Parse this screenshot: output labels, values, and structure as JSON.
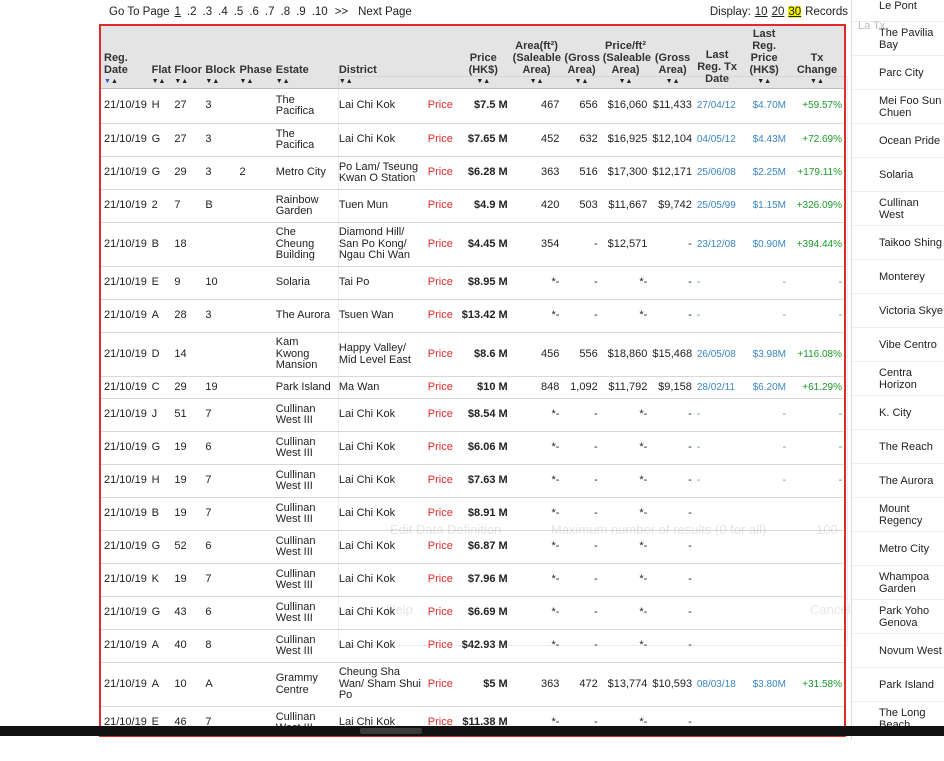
{
  "pager": {
    "go_to_label": "Go To Page",
    "pages": [
      "1",
      ".2",
      ".3",
      ".4",
      ".5",
      ".6",
      ".7",
      ".8",
      ".9",
      ".10"
    ],
    "more": ">>",
    "next": "Next Page",
    "display_label": "Display:",
    "display_options": [
      "10",
      "20",
      "30"
    ],
    "display_selected": "30",
    "records_label": "Records"
  },
  "table": {
    "headers": {
      "reg_date": "Reg. Date",
      "flat": "Flat",
      "floor": "Floor",
      "block": "Block",
      "phase": "Phase",
      "estate": "Estate",
      "district": "District",
      "price_col": "Price (HK$)",
      "area_group": "Area(ft²)",
      "area_saleable": "(Saleable Area)",
      "area_gross": "(Gross Area)",
      "price_ft_group": "Price/ft²",
      "pft_saleable": "(Saleable Area)",
      "pft_gross": "(Gross Area)",
      "last_tx_date": "Last Reg. Tx Date",
      "last_tx_price": "Last Reg. Price (HK$)",
      "change": "Tx Change"
    },
    "rows": [
      {
        "date": "21/10/19",
        "flat": "H",
        "floor": "27",
        "block": "3",
        "phase": "",
        "estate": "The Pacifica",
        "district": "Lai Chi Kok",
        "price_link": "Price",
        "price": "$7.5 M",
        "sa": "467",
        "ga": "656",
        "psa": "$16,060",
        "pga": "$11,433",
        "ltd": "27/04/12",
        "ltp": "$4.70M",
        "chg": "+59.57%"
      },
      {
        "date": "21/10/19",
        "flat": "G",
        "floor": "27",
        "block": "3",
        "phase": "",
        "estate": "The Pacifica",
        "district": "Lai Chi Kok",
        "price_link": "Price",
        "price": "$7.65 M",
        "sa": "452",
        "ga": "632",
        "psa": "$16,925",
        "pga": "$12,104",
        "ltd": "04/05/12",
        "ltp": "$4.43M",
        "chg": "+72.69%"
      },
      {
        "date": "21/10/19",
        "flat": "G",
        "floor": "29",
        "block": "3",
        "phase": "2",
        "estate": "Metro City",
        "district": "Po Lam/ Tseung Kwan O Station",
        "price_link": "Price",
        "price": "$6.28 M",
        "sa": "363",
        "ga": "516",
        "psa": "$17,300",
        "pga": "$12,171",
        "ltd": "25/06/08",
        "ltp": "$2.25M",
        "chg": "+179.11%"
      },
      {
        "date": "21/10/19",
        "flat": "2",
        "floor": "7",
        "block": "B",
        "phase": "",
        "estate": "Rainbow Garden",
        "district": "Tuen Mun",
        "price_link": "Price",
        "price": "$4.9 M",
        "sa": "420",
        "ga": "503",
        "psa": "$11,667",
        "pga": "$9,742",
        "ltd": "25/05/99",
        "ltp": "$1.15M",
        "chg": "+326.09%"
      },
      {
        "date": "21/10/19",
        "flat": "B",
        "floor": "18",
        "block": "",
        "phase": "",
        "estate": "Che Cheung Building",
        "district": "Diamond Hill/ San Po Kong/ Ngau Chi Wan",
        "price_link": "Price",
        "price": "$4.45 M",
        "sa": "354",
        "ga": "-",
        "psa": "$12,571",
        "pga": "-",
        "ltd": "23/12/08",
        "ltp": "$0.90M",
        "chg": "+394.44%"
      },
      {
        "date": "21/10/19",
        "flat": "E",
        "floor": "9",
        "block": "10",
        "phase": "",
        "estate": "Solaria",
        "district": "Tai Po",
        "price_link": "Price",
        "price": "$8.95 M",
        "sa": "*-",
        "ga": "-",
        "psa": "*-",
        "pga": "-",
        "ltd": "-",
        "ltp": "-",
        "chg": "-"
      },
      {
        "date": "21/10/19",
        "flat": "A",
        "floor": "28",
        "block": "3",
        "phase": "",
        "estate": "The Aurora",
        "district": "Tsuen Wan",
        "price_link": "Price",
        "price": "$13.42 M",
        "sa": "*-",
        "ga": "-",
        "psa": "*-",
        "pga": "-",
        "ltd": "-",
        "ltp": "-",
        "chg": "-"
      },
      {
        "date": "21/10/19",
        "flat": "D",
        "floor": "14",
        "block": "",
        "phase": "",
        "estate": "Kam Kwong Mansion",
        "district": "Happy Valley/ Mid Level East",
        "price_link": "Price",
        "price": "$8.6 M",
        "sa": "456",
        "ga": "556",
        "psa": "$18,860",
        "pga": "$15,468",
        "ltd": "26/05/08",
        "ltp": "$3.98M",
        "chg": "+116.08%"
      },
      {
        "date": "21/10/19",
        "flat": "C",
        "floor": "29",
        "block": "19",
        "phase": "",
        "estate": "Park Island",
        "district": "Ma Wan",
        "price_link": "Price",
        "price": "$10 M",
        "sa": "848",
        "ga": "1,092",
        "psa": "$11,792",
        "pga": "$9,158",
        "ltd": "28/02/11",
        "ltp": "$6.20M",
        "chg": "+61.29%"
      },
      {
        "date": "21/10/19",
        "flat": "J",
        "floor": "51",
        "block": "7",
        "phase": "",
        "estate": "Cullinan West III",
        "district": "Lai Chi Kok",
        "price_link": "Price",
        "price": "$8.54 M",
        "sa": "*-",
        "ga": "-",
        "psa": "*-",
        "pga": "-",
        "ltd": "-",
        "ltp": "-",
        "chg": "-"
      },
      {
        "date": "21/10/19",
        "flat": "G",
        "floor": "19",
        "block": "6",
        "phase": "",
        "estate": "Cullinan West III",
        "district": "Lai Chi Kok",
        "price_link": "Price",
        "price": "$6.06 M",
        "sa": "*-",
        "ga": "-",
        "psa": "*-",
        "pga": "-",
        "ltd": "-",
        "ltp": "-",
        "chg": "-"
      },
      {
        "date": "21/10/19",
        "flat": "H",
        "floor": "19",
        "block": "7",
        "phase": "",
        "estate": "Cullinan West III",
        "district": "Lai Chi Kok",
        "price_link": "Price",
        "price": "$7.63 M",
        "sa": "*-",
        "ga": "-",
        "psa": "*-",
        "pga": "-",
        "ltd": "-",
        "ltp": "-",
        "chg": "-"
      },
      {
        "date": "21/10/19",
        "flat": "B",
        "floor": "19",
        "block": "7",
        "phase": "",
        "estate": "Cullinan West III",
        "district": "Lai Chi Kok",
        "price_link": "Price",
        "price": "$8.91 M",
        "sa": "*-",
        "ga": "-",
        "psa": "*-",
        "pga": "-",
        "ltd": "",
        "ltp": "",
        "chg": ""
      },
      {
        "date": "21/10/19",
        "flat": "G",
        "floor": "52",
        "block": "6",
        "phase": "",
        "estate": "Cullinan West III",
        "district": "Lai Chi Kok",
        "price_link": "Price",
        "price": "$6.87 M",
        "sa": "*-",
        "ga": "-",
        "psa": "*-",
        "pga": "-",
        "ltd": "",
        "ltp": "",
        "chg": ""
      },
      {
        "date": "21/10/19",
        "flat": "K",
        "floor": "19",
        "block": "7",
        "phase": "",
        "estate": "Cullinan West III",
        "district": "Lai Chi Kok",
        "price_link": "Price",
        "price": "$7.96 M",
        "sa": "*-",
        "ga": "-",
        "psa": "*-",
        "pga": "-",
        "ltd": "",
        "ltp": "",
        "chg": ""
      },
      {
        "date": "21/10/19",
        "flat": "G",
        "floor": "43",
        "block": "6",
        "phase": "",
        "estate": "Cullinan West III",
        "district": "Lai Chi Kok",
        "price_link": "Price",
        "price": "$6.69 M",
        "sa": "*-",
        "ga": "-",
        "psa": "*-",
        "pga": "-",
        "ltd": "",
        "ltp": "",
        "chg": ""
      },
      {
        "date": "21/10/19",
        "flat": "A",
        "floor": "40",
        "block": "8",
        "phase": "",
        "estate": "Cullinan West III",
        "district": "Lai Chi Kok",
        "price_link": "Price",
        "price": "$42.93 M",
        "sa": "*-",
        "ga": "-",
        "psa": "*-",
        "pga": "-",
        "ltd": "",
        "ltp": "",
        "chg": ""
      },
      {
        "date": "21/10/19",
        "flat": "A",
        "floor": "10",
        "block": "A",
        "phase": "",
        "estate": "Grammy Centre",
        "district": "Cheung Sha Wan/ Sham Shui Po",
        "price_link": "Price",
        "price": "$5 M",
        "sa": "363",
        "ga": "472",
        "psa": "$13,774",
        "pga": "$10,593",
        "ltd": "08/03/18",
        "ltp": "$3.80M",
        "chg": "+31.58%"
      },
      {
        "date": "21/10/19",
        "flat": "E",
        "floor": "46",
        "block": "7",
        "phase": "",
        "estate": "Cullinan West III",
        "district": "Lai Chi Kok",
        "price_link": "Price",
        "price": "$11.38 M",
        "sa": "*-",
        "ga": "-",
        "psa": "*-",
        "pga": "-",
        "ltd": "",
        "ltp": "",
        "chg": ""
      }
    ]
  },
  "ghost": {
    "edit_label": "Edit Data Definition",
    "max_label": "Maximum number of results (0 for all)",
    "max_value": "100",
    "help": "Help",
    "cancel": "Cancel"
  },
  "sidebar": {
    "corner": "La Tx",
    "items": [
      "Le Pont",
      "The Pavilia Bay",
      "Parc City",
      "Mei Foo Sun Chuen",
      "Ocean Pride",
      "Solaria",
      "Cullinan West",
      "Taikoo Shing",
      "Monterey",
      "Victoria Skye",
      "Vibe Centro",
      "Centra Horizon",
      "K. City",
      "The Reach",
      "The Aurora",
      "Mount Regency",
      "Metro City",
      "Whampoa Garden",
      "Park Yoho Genova",
      "Novum West",
      "Park Island",
      "The Long Beach"
    ]
  },
  "colors": {
    "frame": "#e12a2a",
    "price_link": "#e12a2a",
    "tx": "#3b86c8",
    "change": "#1b9b2a",
    "display_highlight": "#f3f300"
  }
}
